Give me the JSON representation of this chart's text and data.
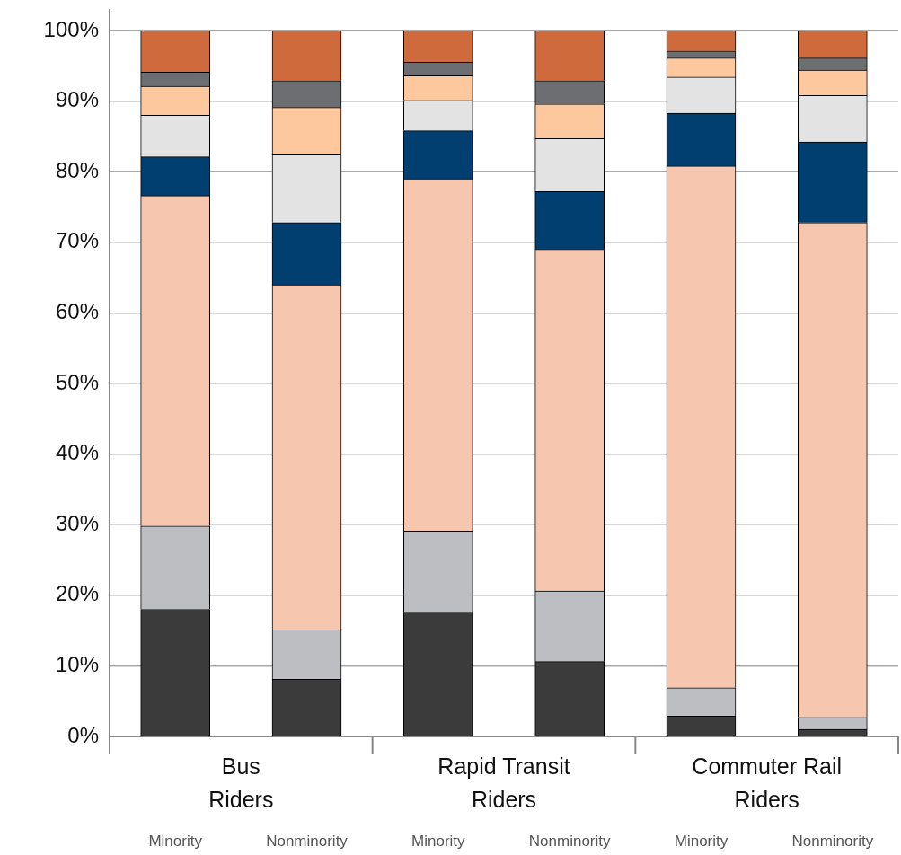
{
  "chart_data": {
    "type": "bar",
    "stacked": true,
    "categories": [
      "Minority",
      "Nonminority",
      "Minority",
      "Nonminority",
      "Minority",
      "Nonminority"
    ],
    "annotations": [
      "Bus Riders",
      "Rapid Transit Riders",
      "Commuter Rail Riders"
    ],
    "series": [
      {
        "color": "#3b3b3b",
        "values": [
          18,
          8.1,
          17.6,
          10.6,
          2.9,
          1
        ]
      },
      {
        "color": "#bcbec2",
        "values": [
          11.8,
          7,
          11.5,
          10,
          4,
          1.7
        ]
      },
      {
        "color": "#f6c6ae",
        "values": [
          46.8,
          48.9,
          49.9,
          48.4,
          73.9,
          70.1
        ]
      },
      {
        "color": "#003f6f",
        "values": [
          5.5,
          8.8,
          6.8,
          8.2,
          7.5,
          11.4
        ]
      },
      {
        "color": "#e3e3e3",
        "values": [
          5.9,
          9.6,
          4.3,
          7.5,
          5.1,
          6.6
        ]
      },
      {
        "color": "#fdc89e",
        "values": [
          4.1,
          6.7,
          3.5,
          4.9,
          2.7,
          3.6
        ]
      },
      {
        "color": "#6d6e71",
        "values": [
          2,
          3.8,
          1.9,
          3.3,
          1,
          1.7
        ]
      },
      {
        "color": "#cf6a3d",
        "values": [
          5.9,
          7.1,
          4.5,
          7.1,
          2.9,
          3.9
        ]
      }
    ],
    "ylim": [
      0,
      100
    ],
    "yticks": [
      {
        "value": 0,
        "label": "0%"
      },
      {
        "value": 10,
        "label": "10%"
      },
      {
        "value": 20,
        "label": "20%"
      },
      {
        "value": 30,
        "label": "30%"
      },
      {
        "value": 40,
        "label": "40%"
      },
      {
        "value": 50,
        "label": "50%"
      },
      {
        "value": 60,
        "label": "60%"
      },
      {
        "value": 70,
        "label": "70%"
      },
      {
        "value": 80,
        "label": "80%"
      },
      {
        "value": 90,
        "label": "90%"
      },
      {
        "value": 100,
        "label": "100%"
      }
    ],
    "grid": "y",
    "legend": false
  }
}
